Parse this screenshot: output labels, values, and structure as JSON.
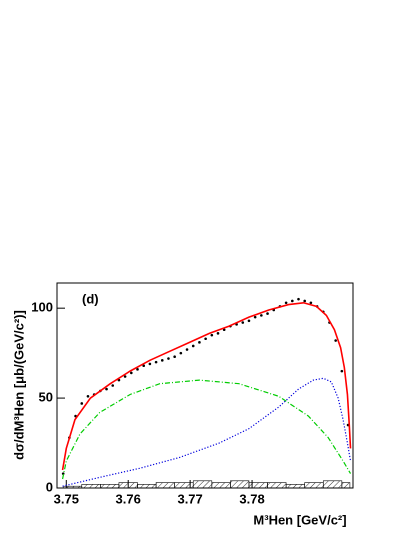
{
  "chart_data": {
    "type": "line",
    "annotation": "(d)",
    "y_label": "dσ/dM³Hen [μb/(GeV/c²)]",
    "x_label": "M³Hen [GeV/c²]",
    "xlim": [
      3.7485,
      3.7963
    ],
    "ylim": [
      0,
      114
    ],
    "xticks": [
      3.75,
      3.76,
      3.77,
      3.78
    ],
    "yticks": [
      0,
      50,
      100
    ],
    "series": [
      {
        "style": "points",
        "color": "#000000",
        "x": [
          3.7495,
          3.7505,
          3.7515,
          3.7525,
          3.7535,
          3.7545,
          3.7555,
          3.7565,
          3.7575,
          3.7585,
          3.7595,
          3.7605,
          3.7615,
          3.7625,
          3.7635,
          3.7645,
          3.7655,
          3.7665,
          3.7675,
          3.7685,
          3.7695,
          3.7705,
          3.7715,
          3.7725,
          3.7735,
          3.7745,
          3.7755,
          3.7765,
          3.7775,
          3.7785,
          3.7795,
          3.7805,
          3.7815,
          3.7825,
          3.7835,
          3.7845,
          3.7855,
          3.7865,
          3.7875,
          3.7885,
          3.7895,
          3.7905,
          3.7915,
          3.7925,
          3.7935,
          3.7945,
          3.7955
        ],
        "values": [
          8,
          28,
          40,
          47,
          51,
          52,
          54,
          55,
          57,
          60,
          62,
          64,
          66,
          68,
          69,
          70,
          71,
          72,
          73,
          75,
          77,
          79,
          81,
          83,
          85,
          86,
          88,
          90,
          91,
          92,
          93,
          95,
          96,
          97,
          99,
          101,
          103,
          104,
          105,
          104,
          103,
          101,
          98,
          92,
          82,
          65,
          35
        ]
      },
      {
        "style": "solid",
        "color": "#ff0000",
        "x": [
          3.7494,
          3.75,
          3.7514,
          3.7539,
          3.7571,
          3.7603,
          3.7635,
          3.7667,
          3.7699,
          3.7731,
          3.7763,
          3.7795,
          3.7827,
          3.7859,
          3.7883,
          3.7904,
          3.792,
          3.7933,
          3.7943,
          3.7949,
          3.7954,
          3.7957,
          3.7959
        ],
        "values": [
          10,
          22,
          38,
          50,
          58,
          65,
          71,
          76,
          81,
          86,
          90,
          95,
          99,
          102,
          103,
          101,
          96,
          88,
          78,
          67,
          52,
          35,
          22
        ]
      },
      {
        "style": "dashed",
        "color": "#00cc00",
        "x": [
          3.7494,
          3.75,
          3.7522,
          3.7554,
          3.7603,
          3.7651,
          3.7715,
          3.7779,
          3.7843,
          3.7891,
          3.7923,
          3.7947,
          3.7959
        ],
        "values": [
          5,
          15,
          30,
          42,
          52,
          58,
          60,
          58,
          51,
          40,
          28,
          15,
          8
        ]
      },
      {
        "style": "dotted",
        "color": "#0000dd",
        "x": [
          3.7494,
          3.7555,
          3.7619,
          3.7683,
          3.7747,
          3.7795,
          3.7843,
          3.7875,
          3.7899,
          3.7915,
          3.7928,
          3.7939,
          3.7947,
          3.7954,
          3.7959
        ],
        "values": [
          1,
          6,
          11,
          17,
          25,
          33,
          45,
          55,
          60,
          61,
          59,
          50,
          38,
          25,
          15
        ]
      }
    ],
    "histogram": {
      "bins": [
        3.7495,
        3.7525,
        3.7555,
        3.7585,
        3.7615,
        3.7645,
        3.7675,
        3.7705,
        3.7735,
        3.7765,
        3.7795,
        3.7825,
        3.7855,
        3.7885,
        3.7915,
        3.7945,
        3.7958
      ],
      "counts": [
        1,
        2,
        2,
        3,
        2,
        3,
        3,
        4,
        3,
        4,
        3,
        3,
        2,
        3,
        4,
        3
      ]
    }
  }
}
